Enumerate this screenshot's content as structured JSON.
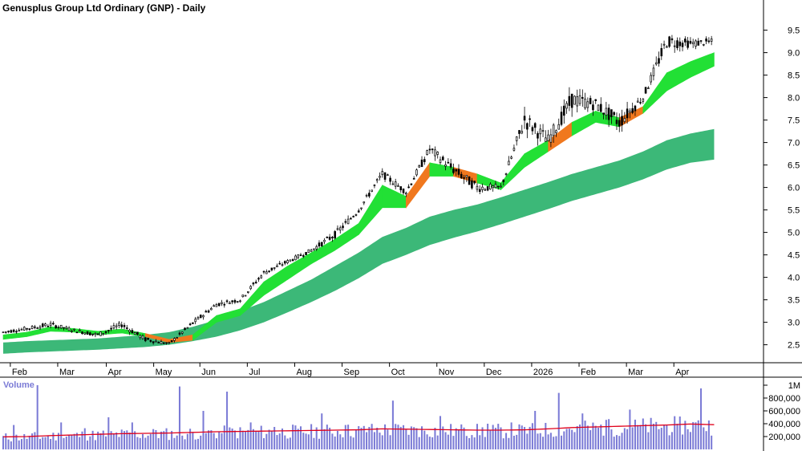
{
  "chart_data": {
    "type": "candlestick",
    "title": "Genusplus Group Ltd Ordinary (GNP) - Daily",
    "price_axis": {
      "range": [
        2.1,
        9.85
      ],
      "ticks": [
        "9.5",
        "9.0",
        "8.5",
        "8.0",
        "7.5",
        "7.0",
        "6.5",
        "6.0",
        "5.5",
        "5.0",
        "4.5",
        "4.0",
        "3.5",
        "3.0",
        "2.5"
      ],
      "tick_values": [
        9.5,
        9.0,
        8.5,
        8.0,
        7.5,
        7.0,
        6.5,
        6.0,
        5.5,
        5.0,
        4.5,
        4.0,
        3.5,
        3.0,
        2.5
      ]
    },
    "x_axis": {
      "labels": [
        "Feb",
        "Mar",
        "Apr",
        "May",
        "Jun",
        "Jul",
        "Aug",
        "Sep",
        "Oct",
        "Nov",
        "Dec",
        "2026",
        "Feb",
        "Mar",
        "Apr"
      ],
      "label_positions": [
        0.3,
        2.3,
        4.35,
        6.35,
        8.3,
        10.3,
        12.3,
        14.3,
        16.3,
        18.3,
        20.3,
        22.3,
        24.3,
        26.3,
        28.3
      ]
    },
    "volume_axis": {
      "label": "Volume",
      "range": [
        0,
        1000000
      ],
      "ticks": [
        "1M",
        "800,000",
        "600,000",
        "400,000",
        "200,000"
      ],
      "tick_values": [
        1000000,
        800000,
        600000,
        400000,
        200000
      ]
    },
    "price_series": {
      "t": [
        0,
        1,
        2,
        3,
        4,
        5,
        6,
        7,
        8,
        9,
        10,
        11,
        12,
        13,
        14,
        15,
        16,
        17,
        18,
        19,
        20,
        21,
        22,
        23,
        24,
        25,
        26,
        27,
        28,
        29,
        30
      ],
      "close": [
        2.78,
        2.86,
        2.95,
        2.82,
        2.72,
        2.95,
        2.62,
        2.52,
        2.98,
        3.4,
        3.5,
        4.1,
        4.35,
        4.6,
        4.95,
        5.5,
        6.3,
        5.9,
        6.85,
        6.4,
        6.0,
        6.0,
        7.5,
        7.05,
        7.95,
        7.85,
        7.45,
        8.0,
        9.25,
        9.2,
        9.25
      ],
      "high": [
        2.85,
        2.96,
        3.05,
        2.92,
        2.85,
        3.1,
        2.78,
        2.6,
        3.05,
        3.55,
        3.6,
        4.2,
        4.45,
        4.7,
        5.0,
        5.65,
        6.4,
        6.05,
        7.0,
        6.55,
        6.35,
        6.2,
        8.1,
        7.3,
        8.35,
        8.1,
        7.7,
        8.2,
        9.6,
        9.4,
        9.35
      ],
      "low": [
        2.65,
        2.72,
        2.75,
        2.7,
        2.55,
        2.75,
        2.48,
        2.4,
        2.75,
        3.25,
        3.35,
        3.85,
        4.2,
        4.45,
        4.55,
        5.3,
        5.95,
        5.7,
        6.45,
        5.9,
        5.75,
        5.85,
        7.05,
        6.5,
        7.3,
        7.35,
        6.75,
        7.7,
        8.75,
        8.9,
        8.95
      ]
    },
    "short_ema_band": {
      "upper": [
        2.72,
        2.78,
        2.9,
        2.86,
        2.8,
        2.85,
        2.75,
        2.62,
        2.72,
        3.15,
        3.3,
        3.9,
        4.25,
        4.55,
        4.85,
        5.2,
        6.05,
        5.8,
        6.55,
        6.45,
        6.3,
        6.1,
        6.75,
        7.05,
        7.45,
        7.7,
        7.55,
        7.8,
        8.55,
        8.8,
        9.0
      ],
      "lower": [
        2.62,
        2.68,
        2.8,
        2.78,
        2.72,
        2.76,
        2.68,
        2.55,
        2.6,
        3.0,
        3.15,
        3.6,
        3.95,
        4.3,
        4.6,
        4.95,
        5.55,
        5.55,
        6.25,
        6.25,
        6.1,
        5.95,
        6.45,
        6.8,
        7.15,
        7.45,
        7.35,
        7.65,
        8.15,
        8.45,
        8.7
      ],
      "colors": [
        "#22e035",
        "#22e035",
        "#22e035",
        "#22e035",
        "#22e035",
        "#22e035",
        "#f0781e",
        "#f0781e",
        "#22e035",
        "#22e035",
        "#22e035",
        "#22e035",
        "#22e035",
        "#22e035",
        "#22e035",
        "#22e035",
        "#22e035",
        "#f0781e",
        "#22e035",
        "#f0781e",
        "#22e035",
        "#22e035",
        "#22e035",
        "#f0781e",
        "#22e035",
        "#22e035",
        "#f0781e",
        "#22e035",
        "#22e035",
        "#22e035",
        "#22e035"
      ]
    },
    "long_ema_band": {
      "upper": [
        2.55,
        2.58,
        2.6,
        2.62,
        2.64,
        2.68,
        2.72,
        2.78,
        2.9,
        3.05,
        3.25,
        3.45,
        3.7,
        3.95,
        4.25,
        4.55,
        4.9,
        5.1,
        5.35,
        5.5,
        5.62,
        5.78,
        5.95,
        6.12,
        6.3,
        6.45,
        6.6,
        6.8,
        7.05,
        7.2,
        7.3
      ],
      "lower": [
        2.3,
        2.33,
        2.35,
        2.37,
        2.39,
        2.42,
        2.45,
        2.5,
        2.58,
        2.68,
        2.82,
        3.0,
        3.22,
        3.45,
        3.7,
        3.98,
        4.3,
        4.5,
        4.72,
        4.88,
        5.02,
        5.18,
        5.35,
        5.52,
        5.7,
        5.85,
        6.0,
        6.18,
        6.4,
        6.55,
        6.62
      ],
      "color": "#3cb878"
    },
    "volume_series": {
      "t": [
        0,
        1,
        2,
        3,
        4,
        5,
        6,
        7,
        8,
        9,
        10,
        11,
        12,
        13,
        14,
        15,
        16,
        17,
        18,
        19,
        20,
        21,
        22,
        23,
        24,
        25,
        26,
        27,
        28,
        29,
        30
      ],
      "values": [
        380000,
        1000000,
        420000,
        330000,
        500000,
        420000,
        300000,
        980000,
        600000,
        900000,
        420000,
        350000,
        320000,
        560000,
        380000,
        350000,
        760000,
        330000,
        520000,
        340000,
        400000,
        420000,
        600000,
        880000,
        560000,
        460000,
        620000,
        400000,
        400000,
        950000,
        330000
      ],
      "average": [
        195000,
        200000,
        215000,
        225000,
        235000,
        245000,
        250000,
        255000,
        265000,
        275000,
        280000,
        285000,
        290000,
        295000,
        300000,
        305000,
        320000,
        315000,
        310000,
        305000,
        300000,
        300000,
        305000,
        320000,
        340000,
        350000,
        360000,
        370000,
        380000,
        395000,
        385000
      ],
      "bar_color": "#7b7bd6",
      "average_color": "#e0001b"
    }
  }
}
